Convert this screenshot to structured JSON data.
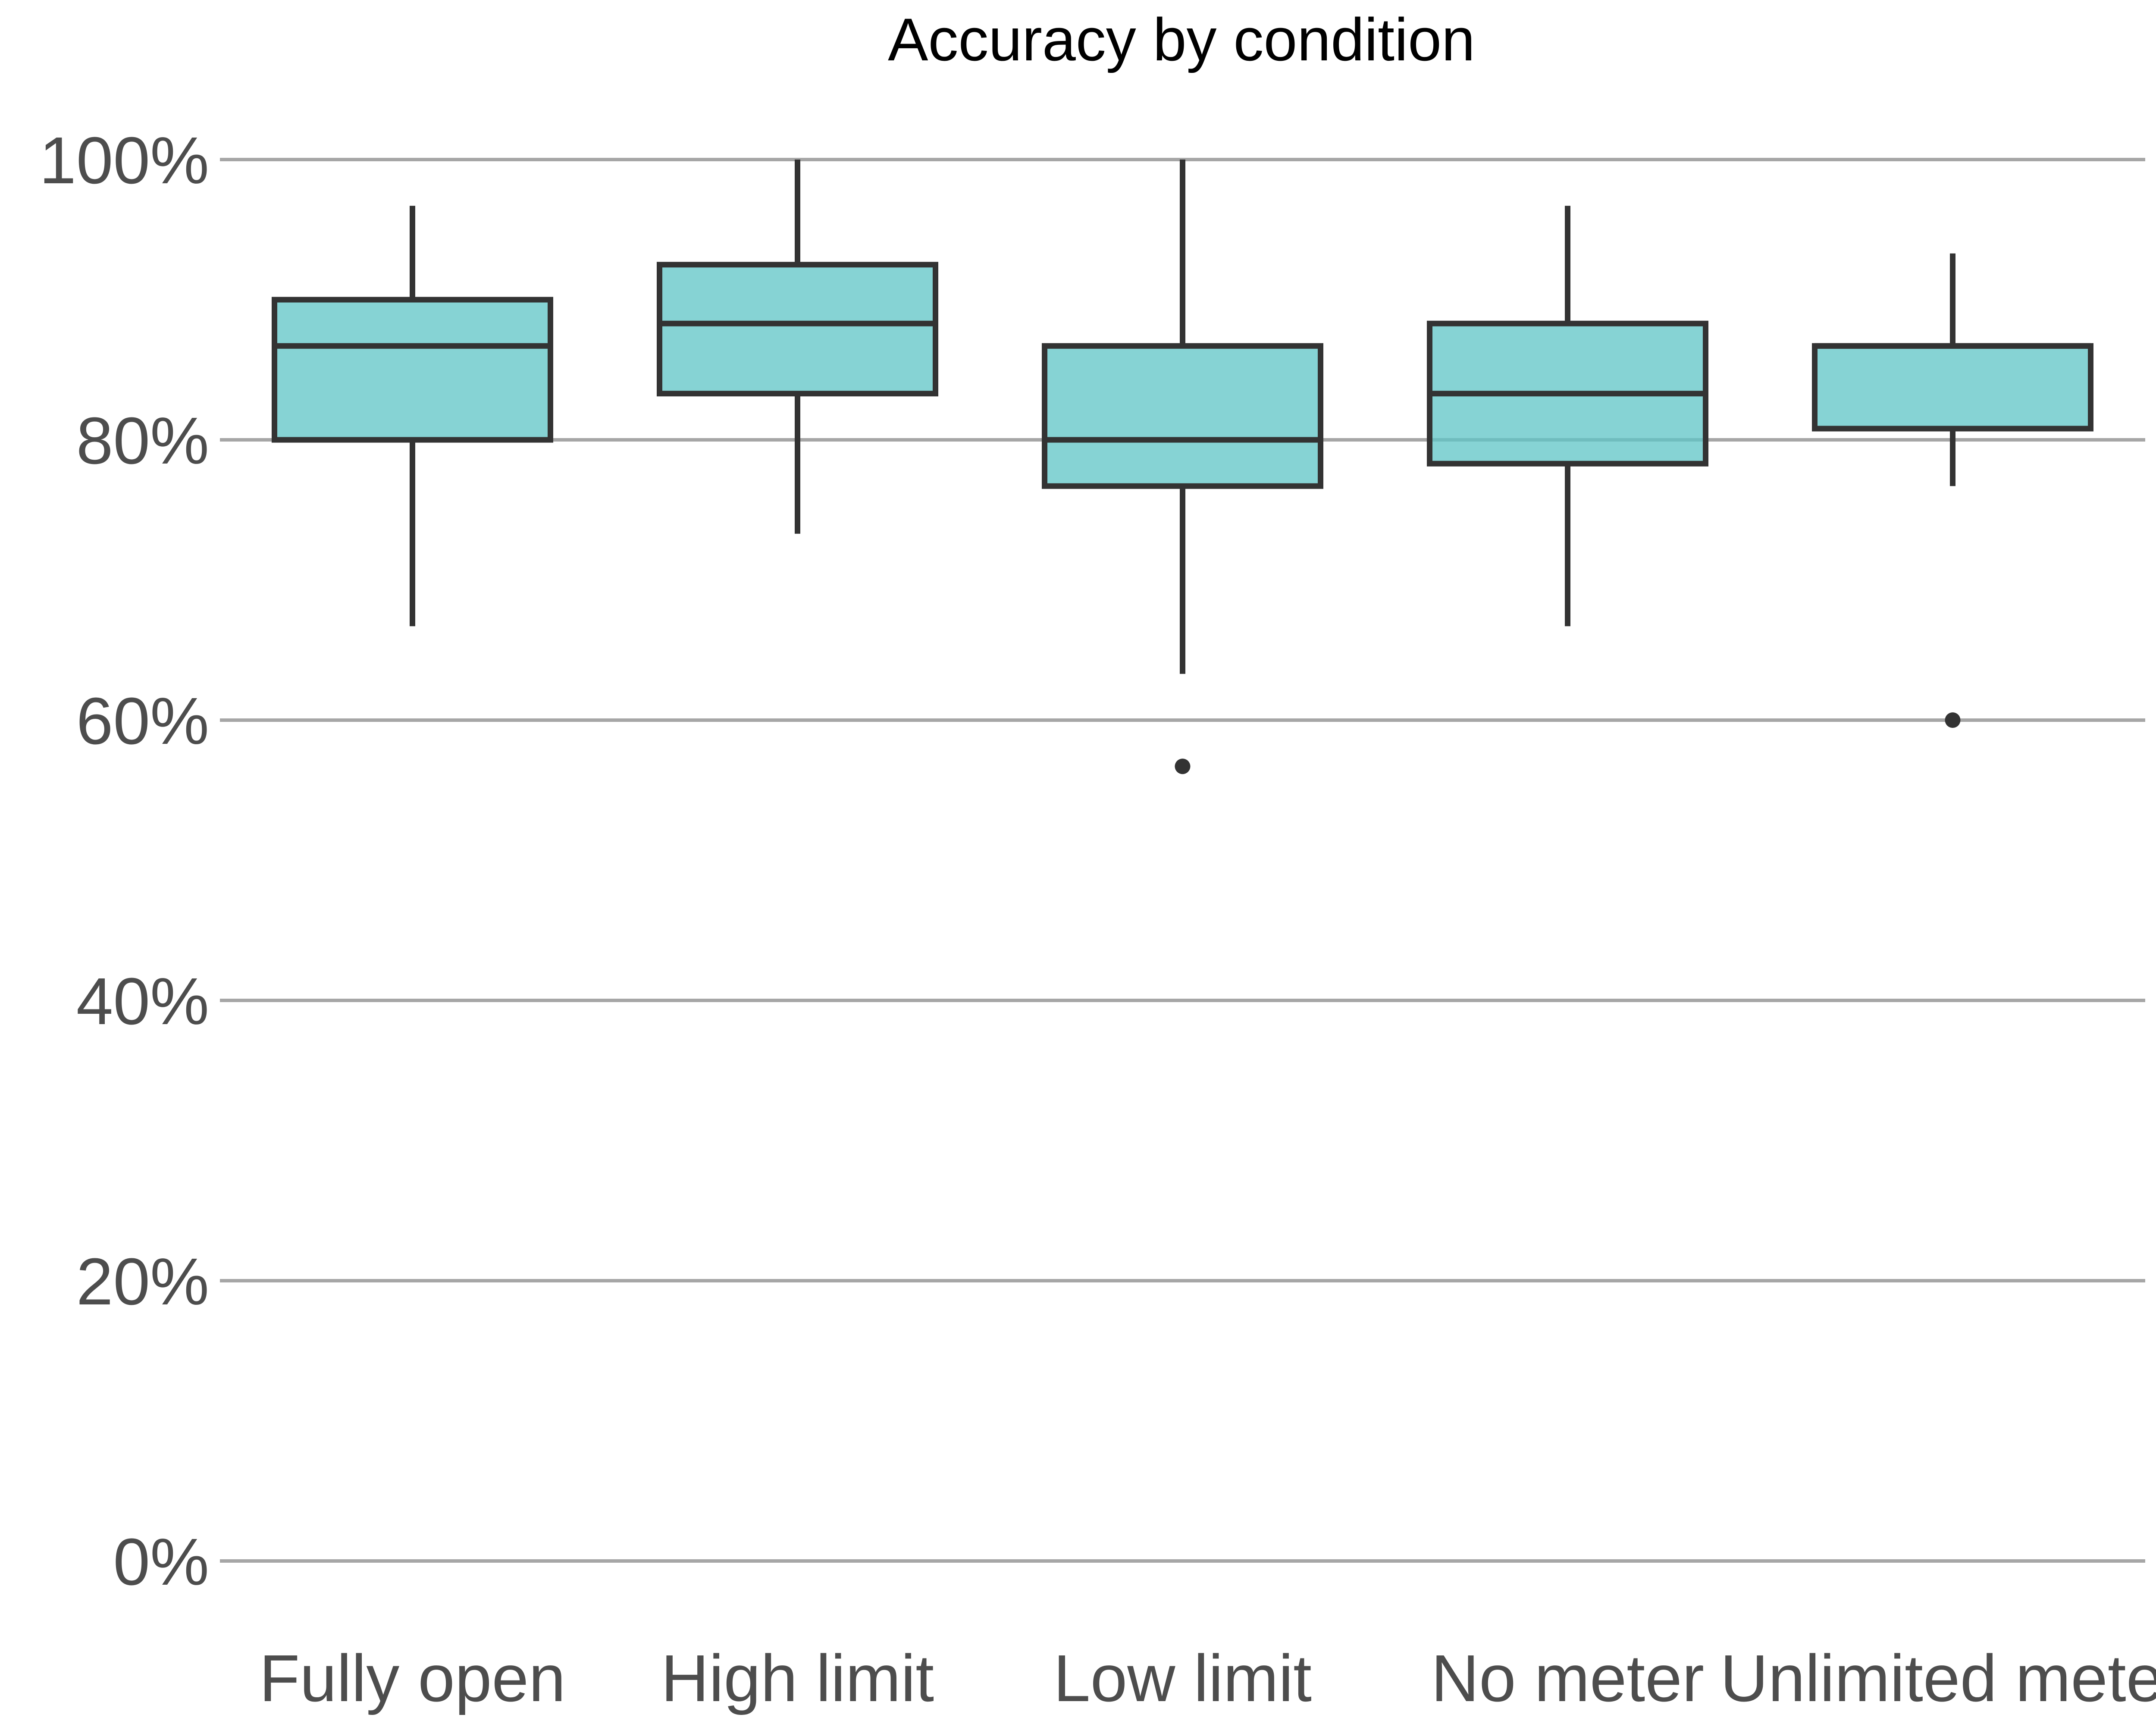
{
  "chart_data": {
    "type": "boxplot",
    "title": "Accuracy by condition",
    "xlabel": "",
    "ylabel": "",
    "ylim": [
      0,
      100
    ],
    "y_ticks": [
      0,
      20,
      40,
      60,
      80,
      100
    ],
    "y_tick_labels": [
      "0%",
      "20%",
      "40%",
      "60%",
      "80%",
      "100%"
    ],
    "grid": "horizontal",
    "legend": "none",
    "categories": [
      "Fully open",
      "High limit",
      "Low limit",
      "No meter",
      "Unlimited meter"
    ],
    "boxes": [
      {
        "category": "Fully open",
        "whisker_low": 66.7,
        "q1": 80.0,
        "median": 86.7,
        "q3": 90.0,
        "whisker_high": 96.7,
        "outliers": []
      },
      {
        "category": "High limit",
        "whisker_low": 73.3,
        "q1": 83.3,
        "median": 88.3,
        "q3": 92.5,
        "whisker_high": 100.0,
        "outliers": []
      },
      {
        "category": "Low limit",
        "whisker_low": 63.3,
        "q1": 76.7,
        "median": 80.0,
        "q3": 86.7,
        "whisker_high": 100.0,
        "outliers": [
          56.7
        ]
      },
      {
        "category": "No meter",
        "whisker_low": 66.7,
        "q1": 78.3,
        "median": 83.3,
        "q3": 88.3,
        "whisker_high": 96.7,
        "outliers": []
      },
      {
        "category": "Unlimited meter",
        "whisker_low": 76.7,
        "q1": 80.8,
        "median": 86.7,
        "q3": 86.7,
        "whisker_high": 93.3,
        "outliers": [
          60.0
        ]
      }
    ]
  },
  "colors": {
    "box_fill": "#5ec4c5",
    "box_stroke": "#333333",
    "grid": "#a6a6a6",
    "tick_text": "#4d4d4d",
    "title_text": "#000000"
  }
}
